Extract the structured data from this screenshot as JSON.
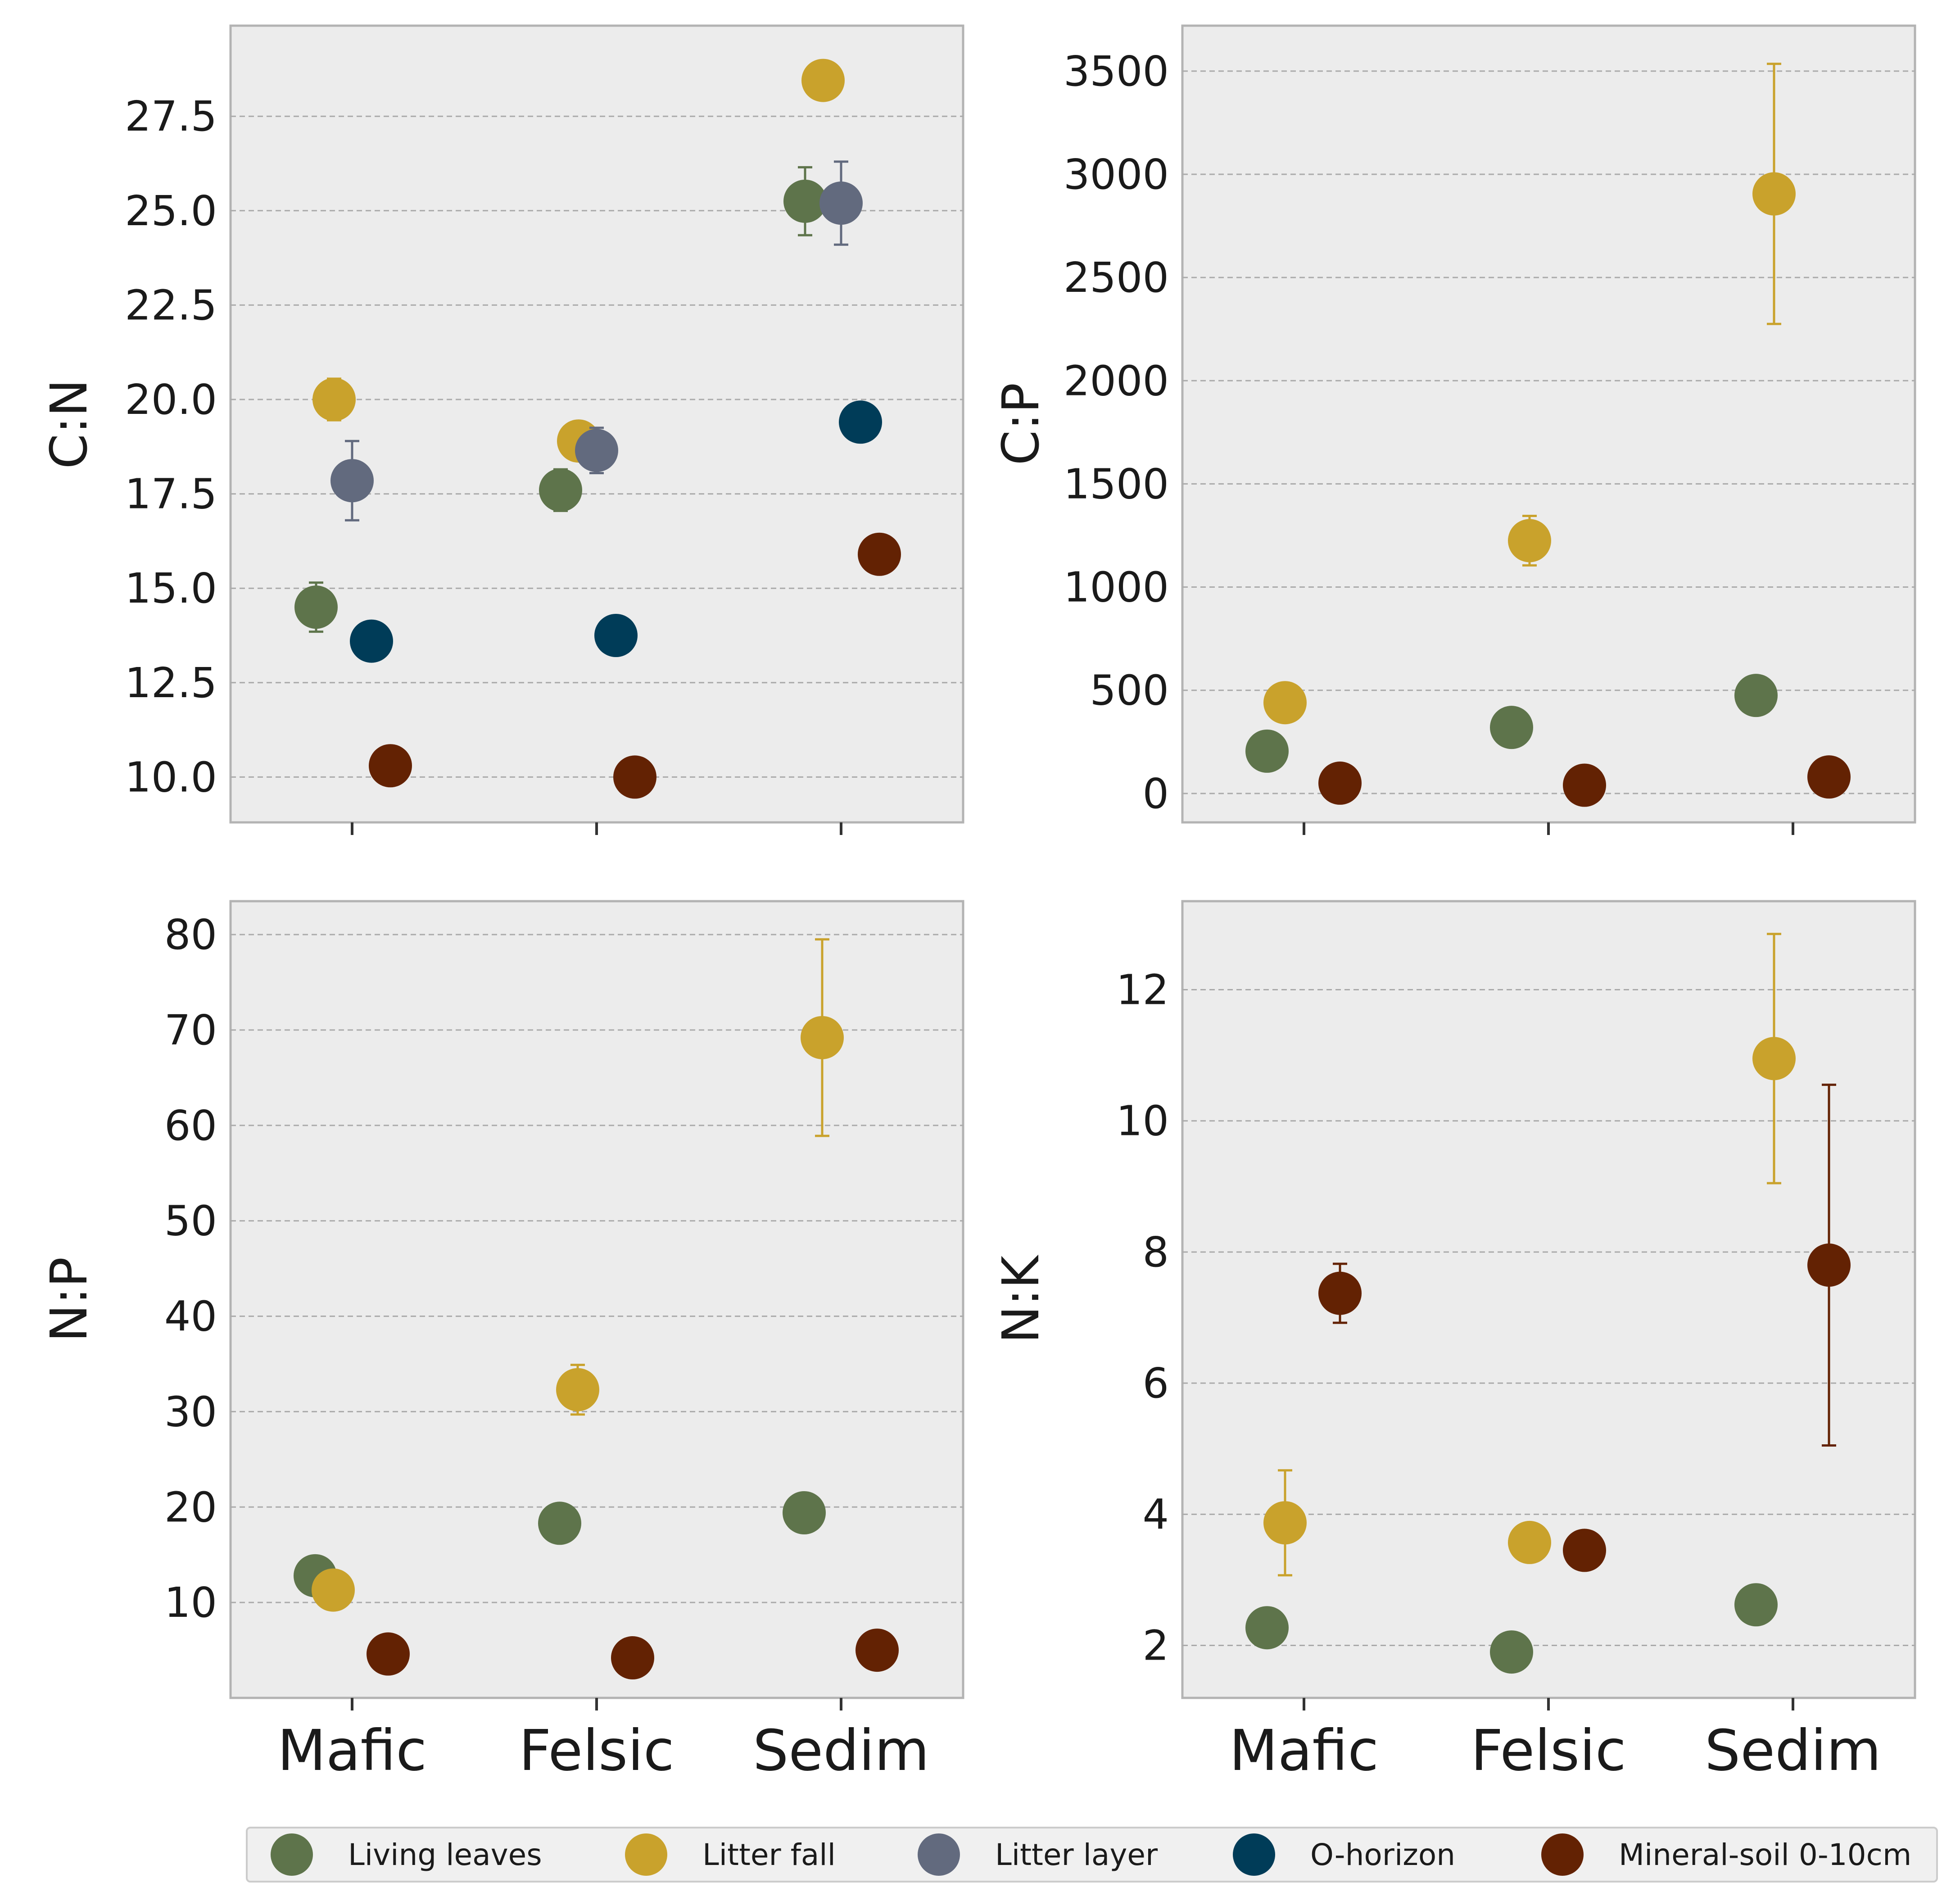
{
  "chart_data": {
    "type": "scatter",
    "categories": [
      "Mafic",
      "Felsic",
      "Sedim"
    ],
    "series_names": [
      "Living leaves",
      "Litter fall",
      "Litter layer",
      "O-horizon",
      "Mineral-soil 0-10cm"
    ],
    "colors": {
      "Living leaves": "#5e744b",
      "Litter fall": "#c9a22c",
      "Litter layer": "#626a7e",
      "O-horizon": "#003c58",
      "Mineral-soil 0-10cm": "#632203"
    },
    "grid": true,
    "legend_position": "bottom",
    "panels": [
      {
        "ylabel": "C:N",
        "ylim": [
          8.8,
          29.9
        ],
        "yticks": [
          10.0,
          12.5,
          15.0,
          17.5,
          20.0,
          22.5,
          25.0,
          27.5
        ],
        "ytick_labels": [
          "10.0",
          "12.5",
          "15.0",
          "17.5",
          "20.0",
          "22.5",
          "25.0",
          "27.5"
        ],
        "show_xtick_labels": false,
        "series": [
          {
            "name": "Living leaves",
            "values": [
              14.5,
              17.6,
              25.25
            ],
            "errors": [
              0.65,
              0.55,
              0.9
            ]
          },
          {
            "name": "Litter fall",
            "values": [
              20.0,
              18.9,
              28.45
            ],
            "errors": [
              0.55,
              null,
              null
            ]
          },
          {
            "name": "Litter layer",
            "values": [
              17.85,
              18.65,
              25.2
            ],
            "errors": [
              1.05,
              0.6,
              1.1
            ]
          },
          {
            "name": "O-horizon",
            "values": [
              13.6,
              13.75,
              19.4
            ],
            "errors": [
              null,
              null,
              null
            ]
          },
          {
            "name": "Mineral-soil 0-10cm",
            "values": [
              10.3,
              10.0,
              15.9
            ],
            "errors": [
              null,
              null,
              null
            ]
          }
        ]
      },
      {
        "ylabel": "C:P",
        "ylim": [
          -140,
          3720
        ],
        "yticks": [
          0,
          500,
          1000,
          1500,
          2000,
          2500,
          3000,
          3500
        ],
        "ytick_labels": [
          "0",
          "500",
          "1000",
          "1500",
          "2000",
          "2500",
          "3000",
          "3500"
        ],
        "show_xtick_labels": false,
        "series": [
          {
            "name": "Living leaves",
            "values": [
              205,
              320,
              475
            ],
            "errors": [
              null,
              null,
              null
            ]
          },
          {
            "name": "Litter fall",
            "values": [
              440,
              1225,
              2905
            ],
            "errors": [
              null,
              120,
              630
            ]
          },
          {
            "name": "Mineral-soil 0-10cm",
            "values": [
              50,
              40,
              80
            ],
            "errors": [
              null,
              null,
              null
            ]
          }
        ]
      },
      {
        "ylabel": "N:P",
        "ylim": [
          0,
          83.5
        ],
        "yticks": [
          10,
          20,
          30,
          40,
          50,
          60,
          70,
          80
        ],
        "ytick_labels": [
          "10",
          "20",
          "30",
          "40",
          "50",
          "60",
          "70",
          "80"
        ],
        "show_xtick_labels": true,
        "series": [
          {
            "name": "Living leaves",
            "values": [
              12.8,
              18.3,
              19.4
            ],
            "errors": [
              null,
              null,
              null
            ]
          },
          {
            "name": "Litter fall",
            "values": [
              11.3,
              32.3,
              69.2
            ],
            "errors": [
              null,
              2.6,
              10.3
            ]
          },
          {
            "name": "Mineral-soil 0-10cm",
            "values": [
              4.6,
              4.2,
              5.0
            ],
            "errors": [
              null,
              null,
              null
            ]
          }
        ]
      },
      {
        "ylabel": "N:K",
        "ylim": [
          1.2,
          13.35
        ],
        "yticks": [
          2,
          4,
          6,
          8,
          10,
          12
        ],
        "ytick_labels": [
          "2",
          "4",
          "6",
          "8",
          "10",
          "12"
        ],
        "show_xtick_labels": true,
        "series": [
          {
            "name": "Living leaves",
            "values": [
              2.27,
              1.9,
              2.62
            ],
            "errors": [
              null,
              null,
              null
            ]
          },
          {
            "name": "Litter fall",
            "values": [
              3.87,
              3.57,
              10.95
            ],
            "errors": [
              0.8,
              null,
              1.9
            ]
          },
          {
            "name": "Mineral-soil 0-10cm",
            "values": [
              7.37,
              3.45,
              7.8
            ],
            "errors": [
              0.45,
              null,
              2.75
            ]
          }
        ]
      }
    ]
  }
}
